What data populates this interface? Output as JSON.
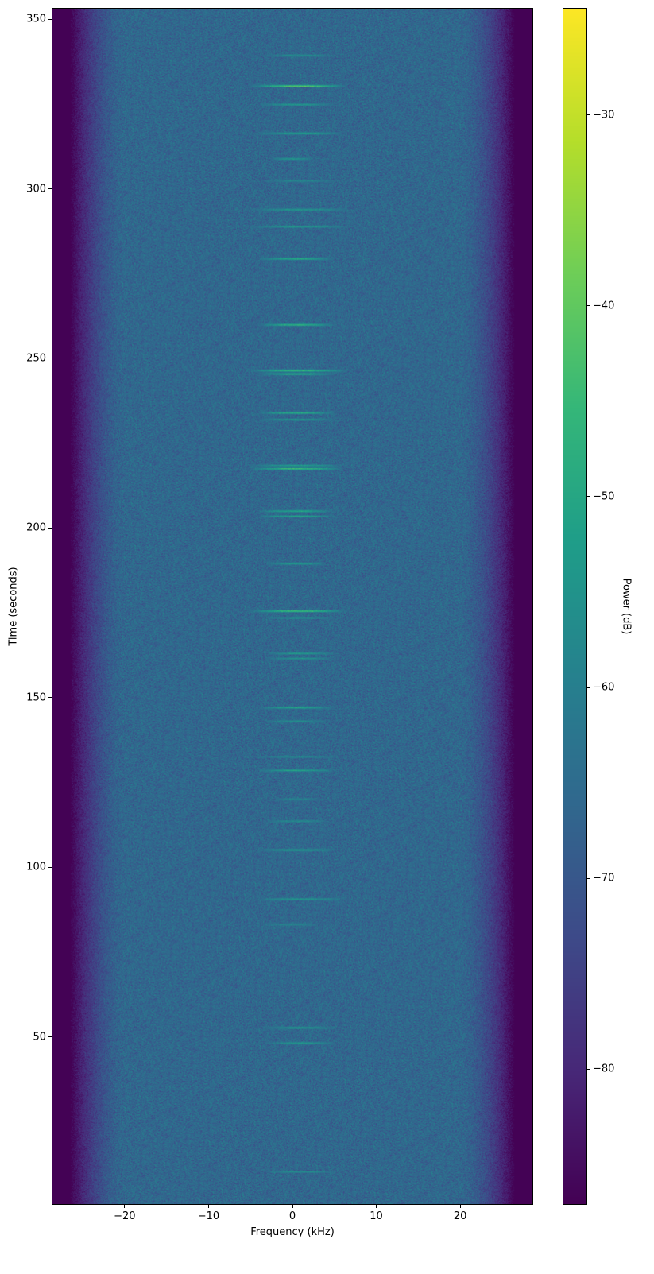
{
  "chart_data": {
    "type": "heatmap",
    "title": "",
    "xlabel": "Frequency (kHz)",
    "ylabel": "Time (seconds)",
    "xlim": [
      -28.7,
      28.7
    ],
    "ylim": [
      0.5,
      353.3
    ],
    "xticks": [
      -20,
      -10,
      0,
      10,
      20
    ],
    "xtick_labels": [
      "−20",
      "−10",
      "0",
      "10",
      "20"
    ],
    "yticks": [
      50,
      100,
      150,
      200,
      250,
      300,
      350
    ],
    "ytick_labels": [
      "50",
      "100",
      "150",
      "200",
      "250",
      "300",
      "350"
    ],
    "colorbar": {
      "label": "Power (dB)",
      "colormap": "viridis",
      "range": [
        -87.1,
        -24.4
      ],
      "ticks": [
        -80,
        -70,
        -60,
        -50,
        -40,
        -30
      ],
      "tick_labels": [
        "−80",
        "−70",
        "−60",
        "−50",
        "−40",
        "−30"
      ]
    },
    "noise_floor_db": -66,
    "passband_khz": [
      -26.5,
      26.5
    ],
    "outside_band_db": -87,
    "bursts": [
      {
        "time": 339.5,
        "freq": [
          -3,
          5
        ],
        "peak_db": -55
      },
      {
        "time": 330.5,
        "freq": [
          -5,
          6.5
        ],
        "peak_db": -38
      },
      {
        "time": 325,
        "freq": [
          -4,
          5
        ],
        "peak_db": -52
      },
      {
        "time": 316.5,
        "freq": [
          -4,
          6
        ],
        "peak_db": -50
      },
      {
        "time": 309,
        "freq": [
          -2.5,
          2.5
        ],
        "peak_db": -52
      },
      {
        "time": 302.5,
        "freq": [
          -3,
          5
        ],
        "peak_db": -57
      },
      {
        "time": 294,
        "freq": [
          -5,
          6.5
        ],
        "peak_db": -52
      },
      {
        "time": 289,
        "freq": [
          -5,
          6.5
        ],
        "peak_db": -50
      },
      {
        "time": 279.5,
        "freq": [
          -4,
          5
        ],
        "peak_db": -46
      },
      {
        "time": 260,
        "freq": [
          -4,
          5
        ],
        "peak_db": -44
      },
      {
        "time": 246.5,
        "freq": [
          -5,
          6.5
        ],
        "peak_db": -42
      },
      {
        "time": 245.5,
        "freq": [
          -4,
          5
        ],
        "peak_db": -46
      },
      {
        "time": 234,
        "freq": [
          -4,
          5
        ],
        "peak_db": -46
      },
      {
        "time": 232,
        "freq": [
          -4,
          5
        ],
        "peak_db": -52
      },
      {
        "time": 218.5,
        "freq": [
          -5,
          6
        ],
        "peak_db": -52
      },
      {
        "time": 217.5,
        "freq": [
          -5,
          6
        ],
        "peak_db": -42
      },
      {
        "time": 205,
        "freq": [
          -4,
          5
        ],
        "peak_db": -48
      },
      {
        "time": 203.5,
        "freq": [
          -4,
          5
        ],
        "peak_db": -50
      },
      {
        "time": 189.5,
        "freq": [
          -3,
          4
        ],
        "peak_db": -52
      },
      {
        "time": 175.5,
        "freq": [
          -5,
          6.5
        ],
        "peak_db": -40
      },
      {
        "time": 173.5,
        "freq": [
          -3,
          5
        ],
        "peak_db": -54
      },
      {
        "time": 163,
        "freq": [
          -3,
          5
        ],
        "peak_db": -52
      },
      {
        "time": 161.5,
        "freq": [
          -3,
          5
        ],
        "peak_db": -54
      },
      {
        "time": 147,
        "freq": [
          -4,
          5
        ],
        "peak_db": -50
      },
      {
        "time": 143,
        "freq": [
          -3,
          4
        ],
        "peak_db": -55
      },
      {
        "time": 132.5,
        "freq": [
          -4,
          5
        ],
        "peak_db": -55
      },
      {
        "time": 128.5,
        "freq": [
          -4,
          5
        ],
        "peak_db": -50
      },
      {
        "time": 120,
        "freq": [
          -2,
          3
        ],
        "peak_db": -57
      },
      {
        "time": 113.5,
        "freq": [
          -3,
          4
        ],
        "peak_db": -56
      },
      {
        "time": 105,
        "freq": [
          -4,
          5
        ],
        "peak_db": -52
      },
      {
        "time": 90.5,
        "freq": [
          -4,
          6
        ],
        "peak_db": -52
      },
      {
        "time": 83,
        "freq": [
          -3,
          3
        ],
        "peak_db": -57
      },
      {
        "time": 52.5,
        "freq": [
          -3,
          5
        ],
        "peak_db": -52
      },
      {
        "time": 48,
        "freq": [
          -3,
          5
        ],
        "peak_db": -52
      },
      {
        "time": 10,
        "freq": [
          -3,
          5
        ],
        "peak_db": -56
      }
    ]
  }
}
